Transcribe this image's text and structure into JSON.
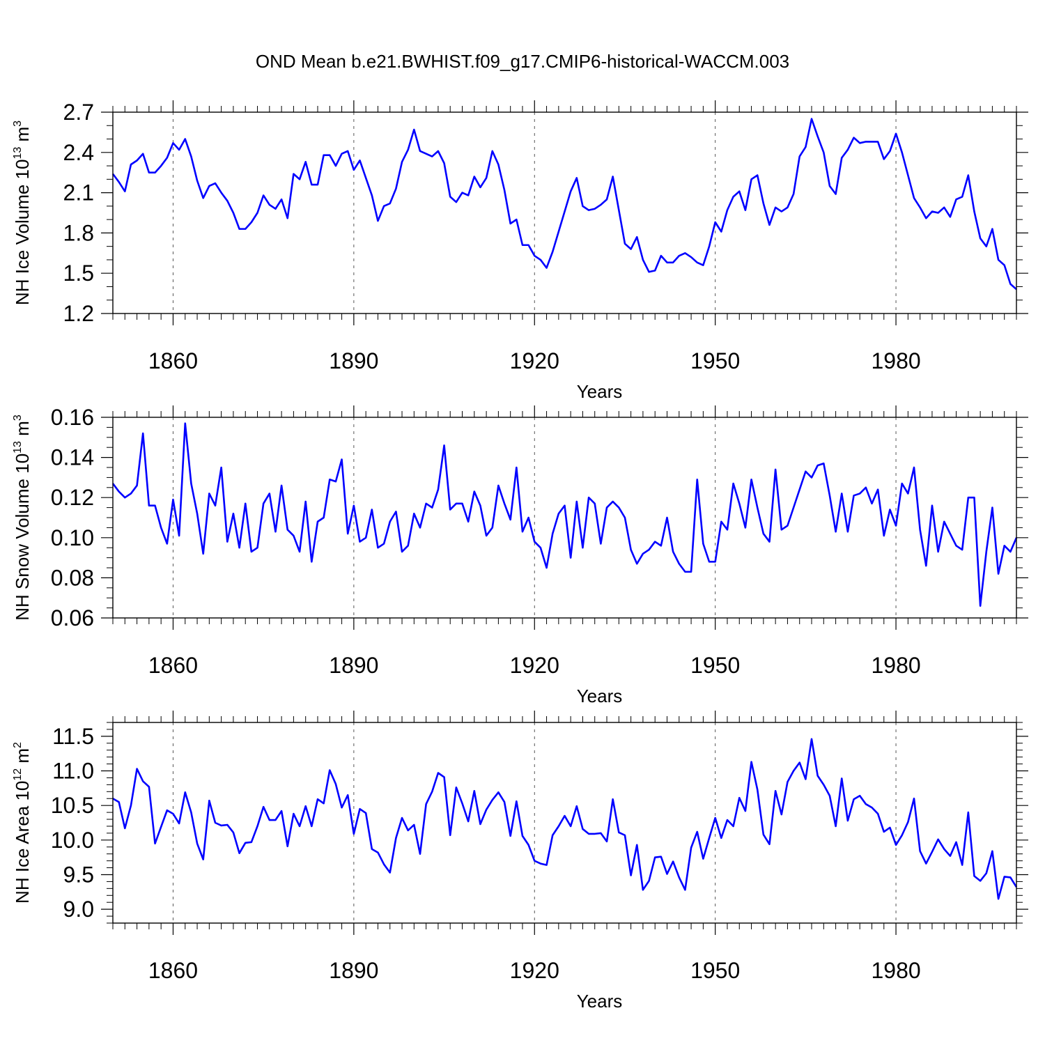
{
  "figure_title": "OND Mean b.e21.BWHIST.f09_g17.CMIP6-historical-WACCM.003",
  "line_color": "#0000ff",
  "chart_data": [
    {
      "type": "line",
      "ylabel_main": "NH Ice Volume 10",
      "ylabel_exp": "13",
      "ylabel_unit": " m",
      "ylabel_unit_exp": "3",
      "xlabel": "Years",
      "xlim": [
        1850,
        2000
      ],
      "ylim": [
        1.2,
        2.7
      ],
      "yticks": [
        1.2,
        1.5,
        1.8,
        2.1,
        2.4,
        2.7
      ],
      "ytick_labels": [
        "1.2",
        "1.5",
        "1.8",
        "2.1",
        "2.4",
        "2.7"
      ],
      "yminor": 0.1,
      "xticks": [
        1860,
        1890,
        1920,
        1950,
        1980
      ],
      "xtick_labels": [
        "1860",
        "1890",
        "1920",
        "1950",
        "1980"
      ],
      "x_start": 1850,
      "values": [
        2.24,
        2.18,
        2.11,
        2.31,
        2.34,
        2.39,
        2.25,
        2.25,
        2.3,
        2.36,
        2.47,
        2.42,
        2.5,
        2.37,
        2.19,
        2.06,
        2.15,
        2.17,
        2.1,
        2.04,
        1.95,
        1.83,
        1.83,
        1.88,
        1.95,
        2.08,
        2.01,
        1.98,
        2.05,
        1.91,
        2.24,
        2.2,
        2.33,
        2.16,
        2.16,
        2.38,
        2.38,
        2.3,
        2.39,
        2.41,
        2.27,
        2.34,
        2.21,
        2.08,
        1.89,
        2.0,
        2.02,
        2.13,
        2.33,
        2.42,
        2.57,
        2.41,
        2.39,
        2.37,
        2.41,
        2.32,
        2.07,
        2.03,
        2.1,
        2.08,
        2.22,
        2.14,
        2.21,
        2.41,
        2.31,
        2.12,
        1.87,
        1.9,
        1.71,
        1.71,
        1.63,
        1.6,
        1.54,
        1.66,
        1.81,
        1.96,
        2.11,
        2.21,
        2.0,
        1.97,
        1.98,
        2.01,
        2.05,
        2.22,
        1.97,
        1.72,
        1.68,
        1.77,
        1.6,
        1.51,
        1.52,
        1.63,
        1.58,
        1.58,
        1.63,
        1.65,
        1.62,
        1.58,
        1.56,
        1.7,
        1.88,
        1.81,
        1.97,
        2.07,
        2.11,
        1.97,
        2.2,
        2.23,
        2.02,
        1.86,
        1.99,
        1.96,
        1.99,
        2.09,
        2.37,
        2.44,
        2.65,
        2.52,
        2.4,
        2.15,
        2.09,
        2.36,
        2.42,
        2.51,
        2.47,
        2.48,
        2.48,
        2.48,
        2.35,
        2.41,
        2.54,
        2.4,
        2.23,
        2.06,
        1.99,
        1.91,
        1.96,
        1.95,
        1.99,
        1.92,
        2.05,
        2.07,
        2.23,
        1.96,
        1.76,
        1.7,
        1.83,
        1.6,
        1.56,
        1.42,
        1.38
      ]
    },
    {
      "type": "line",
      "ylabel_main": "NH Snow Volume 10",
      "ylabel_exp": "13",
      "ylabel_unit": " m",
      "ylabel_unit_exp": "3",
      "xlabel": "Years",
      "xlim": [
        1850,
        2000
      ],
      "ylim": [
        0.06,
        0.16
      ],
      "yticks": [
        0.06,
        0.08,
        0.1,
        0.12,
        0.14,
        0.16
      ],
      "ytick_labels": [
        "0.06",
        "0.08",
        "0.10",
        "0.12",
        "0.14",
        "0.16"
      ],
      "yminor": 0.005,
      "xticks": [
        1860,
        1890,
        1920,
        1950,
        1980
      ],
      "xtick_labels": [
        "1860",
        "1890",
        "1920",
        "1950",
        "1980"
      ],
      "x_start": 1850,
      "values": [
        0.127,
        0.123,
        0.12,
        0.122,
        0.126,
        0.152,
        0.116,
        0.116,
        0.105,
        0.097,
        0.119,
        0.101,
        0.157,
        0.127,
        0.112,
        0.092,
        0.122,
        0.116,
        0.135,
        0.098,
        0.112,
        0.095,
        0.117,
        0.093,
        0.095,
        0.117,
        0.122,
        0.103,
        0.126,
        0.104,
        0.101,
        0.093,
        0.118,
        0.088,
        0.108,
        0.11,
        0.129,
        0.128,
        0.139,
        0.102,
        0.116,
        0.098,
        0.1,
        0.114,
        0.095,
        0.097,
        0.108,
        0.113,
        0.093,
        0.096,
        0.112,
        0.105,
        0.117,
        0.115,
        0.124,
        0.146,
        0.114,
        0.117,
        0.117,
        0.108,
        0.123,
        0.116,
        0.101,
        0.105,
        0.126,
        0.117,
        0.109,
        0.135,
        0.103,
        0.11,
        0.098,
        0.095,
        0.085,
        0.102,
        0.112,
        0.116,
        0.09,
        0.118,
        0.095,
        0.12,
        0.117,
        0.097,
        0.115,
        0.118,
        0.115,
        0.11,
        0.094,
        0.087,
        0.092,
        0.094,
        0.098,
        0.096,
        0.11,
        0.093,
        0.087,
        0.083,
        0.083,
        0.129,
        0.097,
        0.088,
        0.088,
        0.108,
        0.104,
        0.127,
        0.117,
        0.105,
        0.129,
        0.115,
        0.102,
        0.098,
        0.134,
        0.104,
        0.106,
        0.115,
        0.124,
        0.133,
        0.13,
        0.136,
        0.137,
        0.121,
        0.103,
        0.122,
        0.103,
        0.121,
        0.122,
        0.125,
        0.117,
        0.124,
        0.101,
        0.114,
        0.106,
        0.127,
        0.122,
        0.135,
        0.104,
        0.086,
        0.116,
        0.093,
        0.108,
        0.102,
        0.096,
        0.094,
        0.12,
        0.12,
        0.066,
        0.093,
        0.115,
        0.082,
        0.096,
        0.093,
        0.1
      ]
    },
    {
      "type": "line",
      "ylabel_main": "NH Ice Area 10",
      "ylabel_exp": "12",
      "ylabel_unit": " m",
      "ylabel_unit_exp": "2",
      "xlabel": "Years",
      "xlim": [
        1850,
        2000
      ],
      "ylim": [
        8.8,
        11.7
      ],
      "yticks": [
        9.0,
        9.5,
        10.0,
        10.5,
        11.0,
        11.5
      ],
      "ytick_labels": [
        "9.0",
        "9.5",
        "10.0",
        "10.5",
        "11.0",
        "11.5"
      ],
      "yminor": 0.1,
      "xticks": [
        1860,
        1890,
        1920,
        1950,
        1980
      ],
      "xtick_labels": [
        "1860",
        "1890",
        "1920",
        "1950",
        "1980"
      ],
      "x_start": 1850,
      "values": [
        10.6,
        10.55,
        10.17,
        10.5,
        11.03,
        10.85,
        10.77,
        9.95,
        10.19,
        10.43,
        10.38,
        10.24,
        10.69,
        10.4,
        9.95,
        9.72,
        10.57,
        10.25,
        10.21,
        10.22,
        10.11,
        9.81,
        9.96,
        9.97,
        10.2,
        10.48,
        10.29,
        10.29,
        10.42,
        9.91,
        10.38,
        10.2,
        10.49,
        10.2,
        10.59,
        10.53,
        11.01,
        10.81,
        10.47,
        10.65,
        10.09,
        10.45,
        10.39,
        9.87,
        9.82,
        9.65,
        9.53,
        10.03,
        10.32,
        10.14,
        10.22,
        9.8,
        10.52,
        10.7,
        10.97,
        10.91,
        10.07,
        10.76,
        10.53,
        10.27,
        10.71,
        10.23,
        10.44,
        10.58,
        10.69,
        10.55,
        10.06,
        10.56,
        10.06,
        9.93,
        9.7,
        9.66,
        9.64,
        10.07,
        10.2,
        10.35,
        10.2,
        10.49,
        10.16,
        10.09,
        10.09,
        10.1,
        9.98,
        10.59,
        10.11,
        10.07,
        9.49,
        9.93,
        9.28,
        9.41,
        9.75,
        9.76,
        9.51,
        9.69,
        9.46,
        9.28,
        9.89,
        10.12,
        9.73,
        10.03,
        10.32,
        10.03,
        10.29,
        10.2,
        10.61,
        10.42,
        11.13,
        10.73,
        10.08,
        9.94,
        10.71,
        10.37,
        10.84,
        11.0,
        11.12,
        10.88,
        11.46,
        10.93,
        10.8,
        10.64,
        10.2,
        10.89,
        10.28,
        10.59,
        10.64,
        10.52,
        10.47,
        10.38,
        10.12,
        10.18,
        9.93,
        10.07,
        10.26,
        10.6,
        9.84,
        9.66,
        9.83,
        10.01,
        9.87,
        9.77,
        9.97,
        9.64,
        10.4,
        9.48,
        9.41,
        9.52,
        9.84,
        9.15,
        9.47,
        9.46,
        9.32
      ]
    }
  ]
}
